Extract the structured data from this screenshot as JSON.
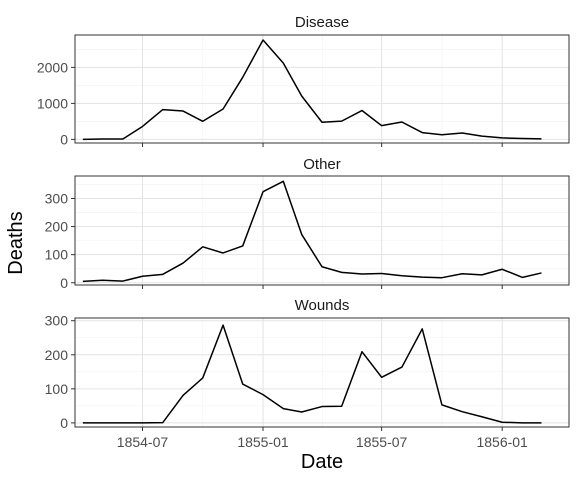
{
  "chart_data": {
    "type": "line",
    "xlabel": "Date",
    "ylabel": "Deaths",
    "grid": true,
    "x_axis": {
      "range": [
        "1854-03-20",
        "1856-04-12"
      ],
      "ticks": [
        {
          "date": "1854-07",
          "label": "1854-07"
        },
        {
          "date": "1855-01",
          "label": "1855-01"
        },
        {
          "date": "1855-07",
          "label": "1855-07"
        },
        {
          "date": "1856-01",
          "label": "1856-01"
        }
      ]
    },
    "x": [
      "1854-04",
      "1854-05",
      "1854-06",
      "1854-07",
      "1854-08",
      "1854-09",
      "1854-10",
      "1854-11",
      "1854-12",
      "1855-01",
      "1855-02",
      "1855-03",
      "1855-04",
      "1855-05",
      "1855-06",
      "1855-07",
      "1855-08",
      "1855-09",
      "1855-10",
      "1855-11",
      "1855-12",
      "1856-01",
      "1856-02",
      "1856-03"
    ],
    "panels": [
      {
        "title": "Disease",
        "ylim": [
          -100,
          2900
        ],
        "yticks": [
          0,
          1000,
          2000
        ],
        "values": [
          1,
          12,
          11,
          359,
          828,
          788,
          503,
          844,
          1725,
          2761,
          2120,
          1205,
          477,
          508,
          802,
          382,
          483,
          189,
          128,
          178,
          91,
          42,
          24,
          15
        ]
      },
      {
        "title": "Other",
        "ylim": [
          -8,
          380
        ],
        "yticks": [
          0,
          100,
          200,
          300
        ],
        "values": [
          5,
          9,
          6,
          23,
          30,
          70,
          128,
          106,
          131,
          324,
          361,
          172,
          57,
          37,
          31,
          33,
          25,
          20,
          18,
          32,
          28,
          48,
          19,
          35
        ]
      },
      {
        "title": "Wounds",
        "ylim": [
          -12,
          308
        ],
        "yticks": [
          0,
          100,
          200,
          300
        ],
        "values": [
          0,
          0,
          0,
          0,
          1,
          81,
          132,
          287,
          114,
          83,
          42,
          32,
          48,
          49,
          209,
          134,
          164,
          276,
          53,
          33,
          18,
          2,
          0,
          0
        ]
      }
    ]
  }
}
